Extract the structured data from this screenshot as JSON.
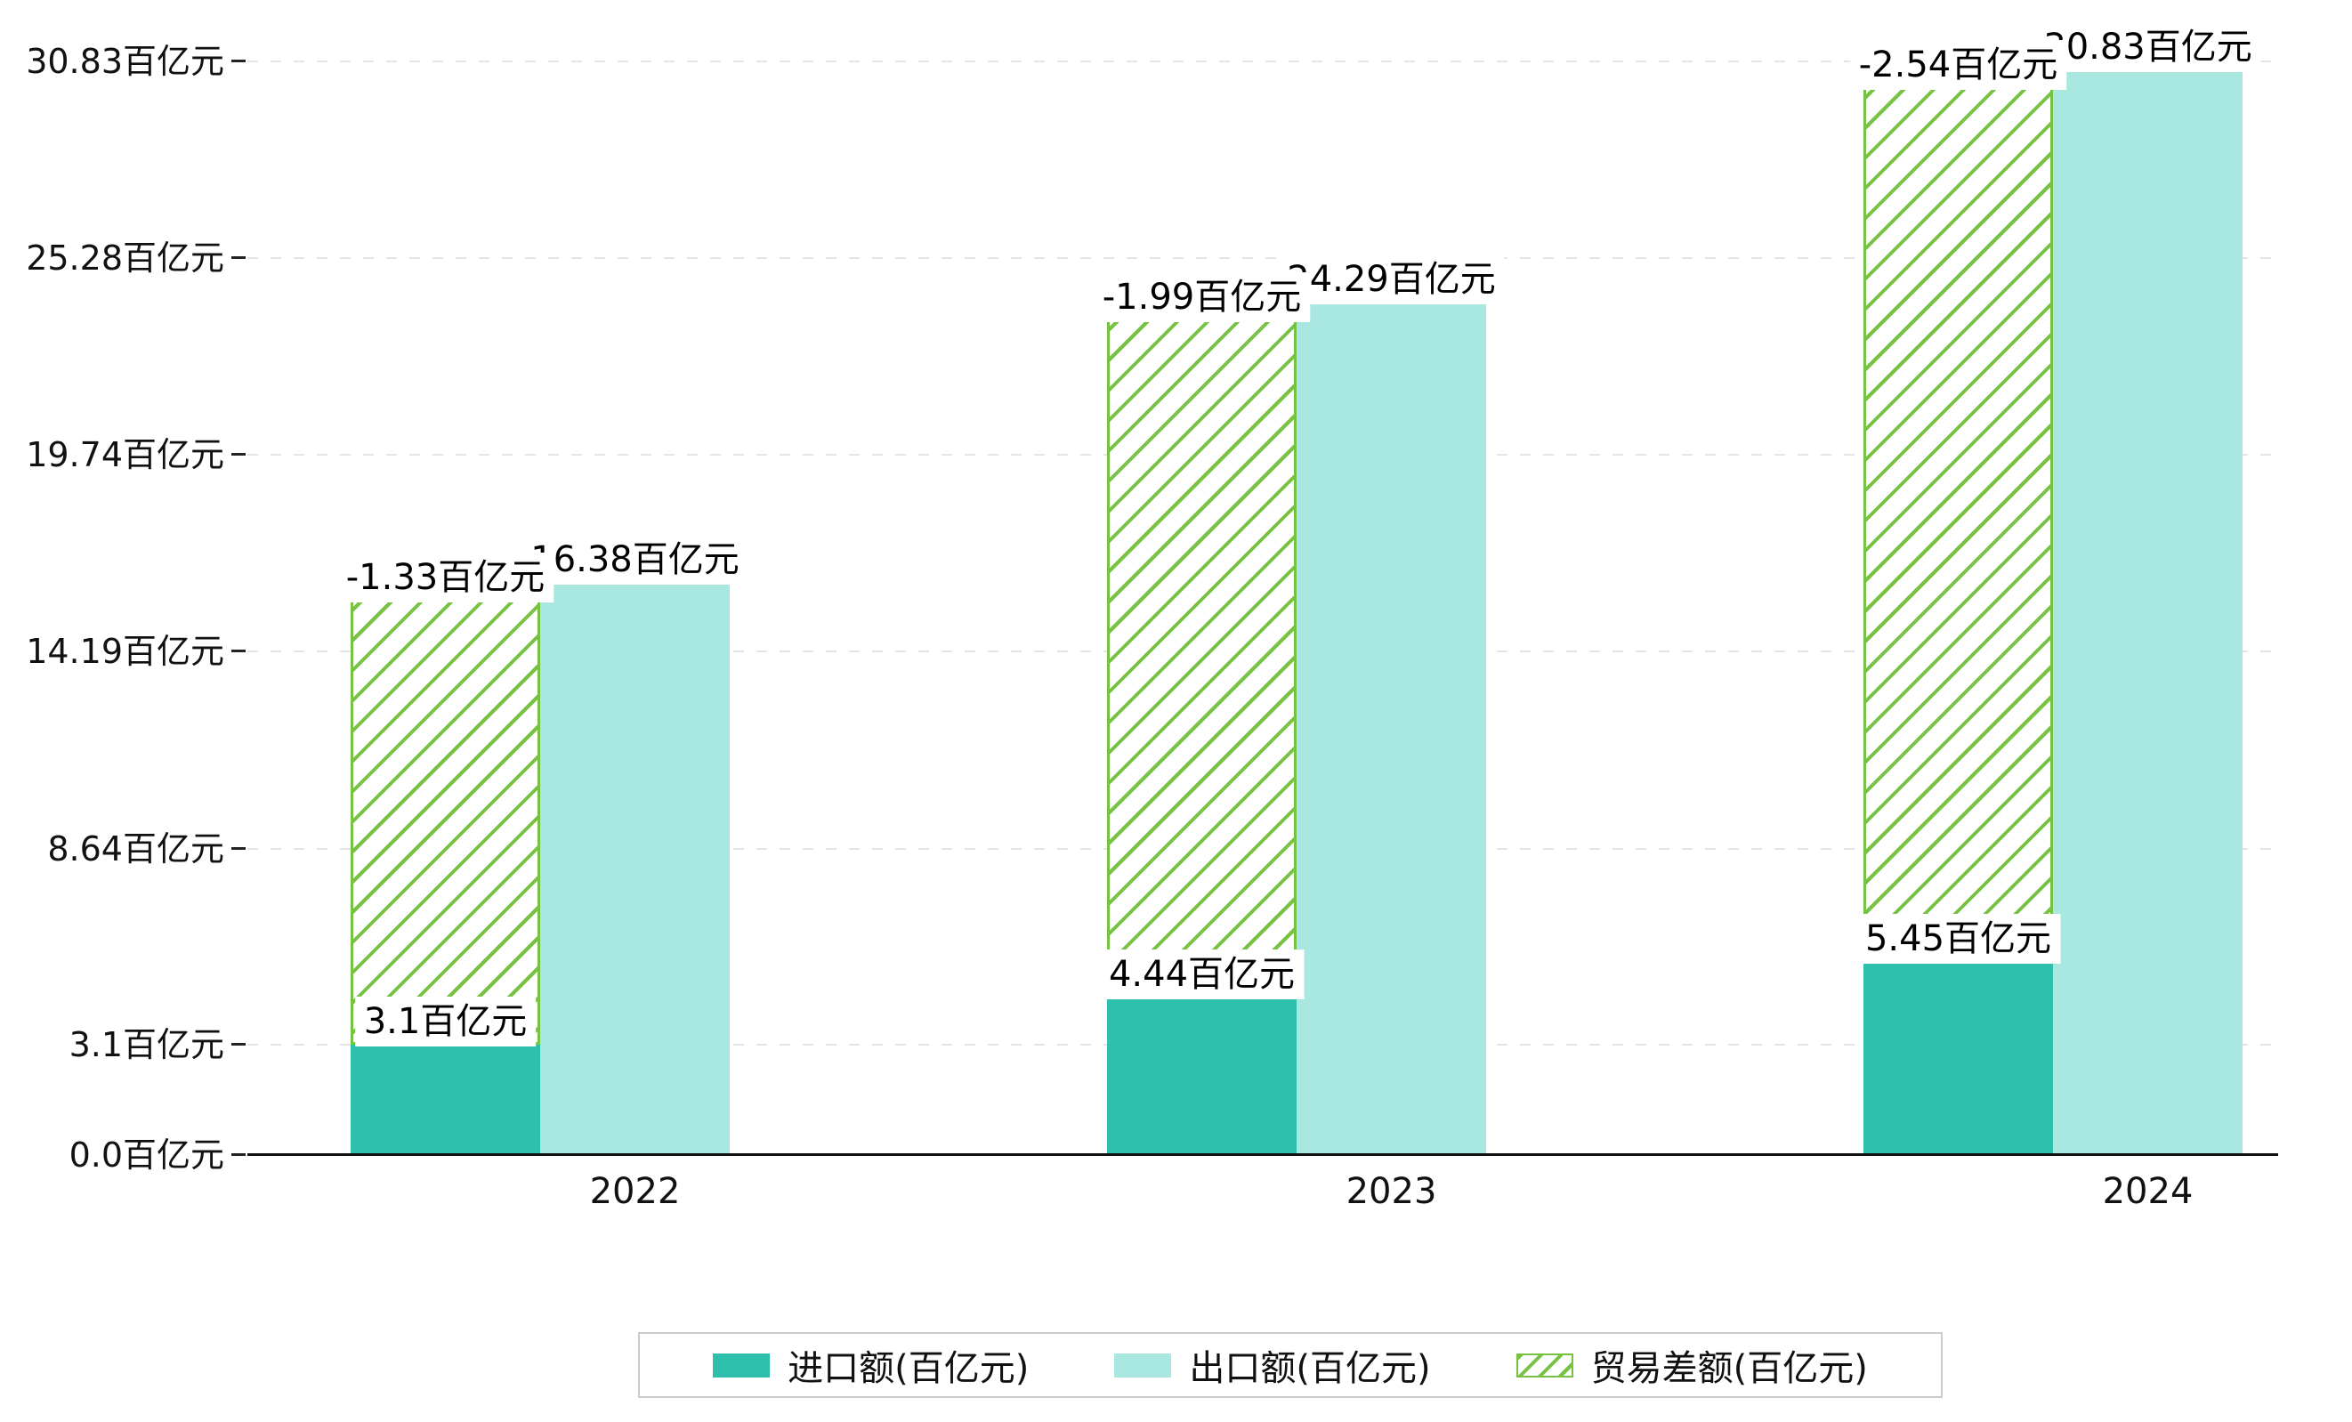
{
  "chart_data": {
    "type": "bar",
    "title": "",
    "unit": "百亿元",
    "categories": [
      "2022",
      "2023",
      "2024"
    ],
    "series": [
      {
        "name": "进口额(百亿元)",
        "values": [
          3.1,
          4.44,
          5.45
        ],
        "color": "#2fc0ad",
        "pattern": "solid"
      },
      {
        "name": "出口额(百亿元)",
        "values": [
          16.38,
          24.29,
          30.83
        ],
        "color": "#a9e8e0",
        "pattern": "solid"
      },
      {
        "name": "贸易差额(百亿元)",
        "values": [
          -1.33,
          -1.99,
          -2.54
        ],
        "color": "#77c143",
        "pattern": "hatch"
      }
    ],
    "bar_labels": {
      "import": [
        "3.1百亿元",
        "4.44百亿元",
        "5.45百亿元"
      ],
      "export": [
        "16.38百亿元",
        "24.29百亿元",
        "30.83百亿元"
      ],
      "balance": [
        "-1.33百亿元",
        "-1.99百亿元",
        "-2.54百亿元"
      ]
    },
    "y_ticks": [
      {
        "label": "0.0百亿元",
        "value": 0.0
      },
      {
        "label": "3.1百亿元",
        "value": 3.1
      },
      {
        "label": "8.64百亿元",
        "value": 8.64
      },
      {
        "label": "14.19百亿元",
        "value": 14.19
      },
      {
        "label": "19.74百亿元",
        "value": 19.74
      },
      {
        "label": "25.28百亿元",
        "value": 25.28
      },
      {
        "label": "30.83百亿元",
        "value": 30.83
      }
    ],
    "ylim": [
      0,
      30.83
    ],
    "xlabel": "",
    "ylabel": "",
    "grid": true,
    "grid_style": "dashed-horizontal",
    "legend_position": "bottom-center",
    "legend": [
      "进口额(百亿元)",
      "出口额(百亿元)",
      "贸易差额(百亿元)"
    ]
  },
  "colors": {
    "background": "#ffffff",
    "import_bar": "#2fc0ad",
    "export_bar": "#a9e8e0",
    "balance_hatch": "#77c143",
    "gridline": "#e4e4e4",
    "axis": "#111111",
    "text": "#111111",
    "legend_border": "#cccccc"
  }
}
